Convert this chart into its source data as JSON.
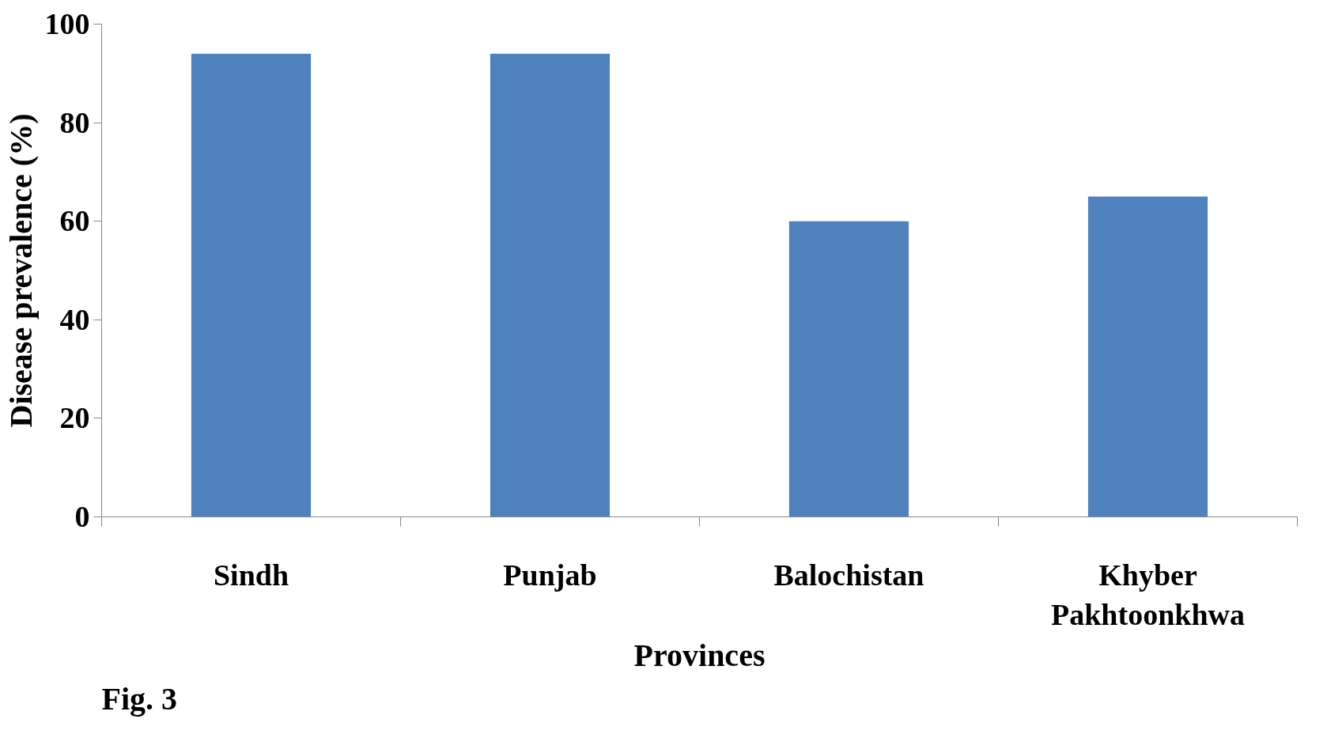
{
  "chart_data": {
    "type": "bar",
    "xlabel": "Provinces",
    "ylabel": "Disease prevalence (%)",
    "categories": [
      "Sindh",
      "Punjab",
      "Balochistan",
      "Khyber\nPakhtoonkhwa"
    ],
    "values": [
      94,
      94,
      60,
      65
    ],
    "color": "#4f81bd",
    "ylim": [
      0,
      100
    ],
    "yticks": [
      0,
      20,
      40,
      60,
      80,
      100
    ],
    "grid": false,
    "annotations": [
      "Fig. 3"
    ]
  }
}
